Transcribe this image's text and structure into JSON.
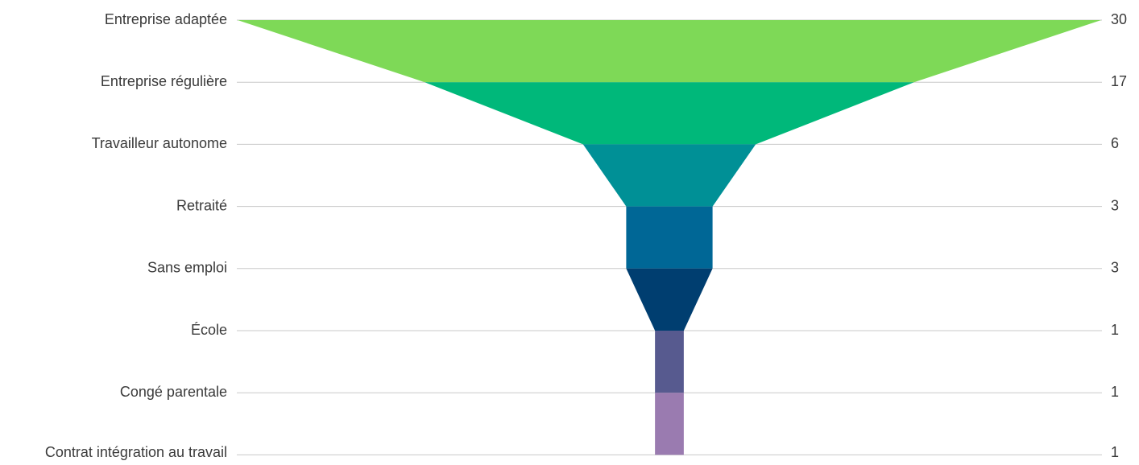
{
  "chart_data": {
    "type": "funnel",
    "categories": [
      "Entreprise adaptée",
      "Entreprise régulière",
      "Travailleur autonome",
      "Retraité",
      "Sans emploi",
      "École ",
      "Congé parentale",
      "Contrat intégration au travail"
    ],
    "values": [
      30,
      17,
      6,
      3,
      3,
      1,
      1,
      1
    ],
    "value_labels": [
      "30",
      "17",
      "6",
      "3",
      "3",
      "1",
      "1",
      "1"
    ],
    "colors": [
      "#7ed957",
      "#00b87a",
      "#009096",
      "#006796",
      "#003e70",
      "#575a8f",
      "#9a7bb0"
    ],
    "grid": true
  }
}
